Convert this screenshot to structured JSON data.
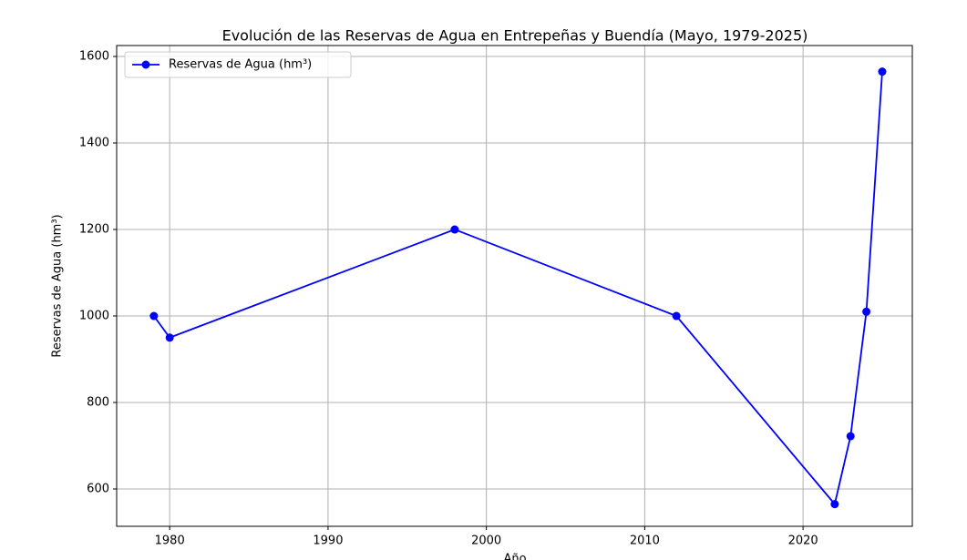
{
  "chart_data": {
    "type": "line",
    "title": "Evolución de las Reservas de Agua en Entrepeñas y Buendía (Mayo, 1979-2025)",
    "x_label": "Año",
    "y_label": "Reservas de Agua (hm³)",
    "x": [
      1979,
      1980,
      1998,
      2012,
      2022,
      2023,
      2024,
      2025
    ],
    "series": [
      {
        "name": "Reservas de Agua (hm³)",
        "color": "#0000ff",
        "values": [
          1000,
          950,
          1200,
          1000,
          565,
          722,
          1010,
          1565
        ]
      }
    ],
    "xlim": [
      1976.65,
      2026.9
    ],
    "xticks": [
      1980,
      1990,
      2000,
      2010,
      2020
    ],
    "ylim": [
      513.7,
      1625.3
    ],
    "yticks": [
      600,
      800,
      1000,
      1200,
      1400,
      1600
    ],
    "grid": true,
    "legend": "upper left",
    "markers": true
  }
}
